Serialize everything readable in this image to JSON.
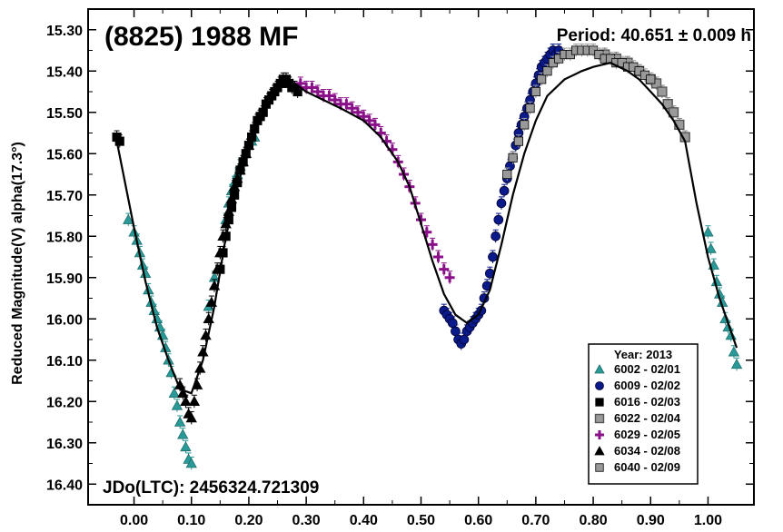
{
  "chart_data": {
    "type": "scatter",
    "title": "(8825) 1988 MF",
    "period_label": "Period: 40.651 ± 0.009 h",
    "epoch_label": "JDo(LTC): 2456324.721309",
    "ylabel": "Reduced Magnitude(V) alpha(17.3°)",
    "xlabel": "",
    "xlim": [
      -0.08,
      1.08
    ],
    "ylim": [
      16.45,
      15.25
    ],
    "y_inverted": true,
    "grid": false,
    "xticks": [
      "0.00",
      "0.10",
      "0.20",
      "0.30",
      "0.40",
      "0.50",
      "0.60",
      "0.70",
      "0.80",
      "0.90",
      "1.00"
    ],
    "yticks": [
      "15.30",
      "15.40",
      "15.50",
      "15.60",
      "15.70",
      "15.80",
      "15.90",
      "16.00",
      "16.10",
      "16.20",
      "16.30",
      "16.40"
    ],
    "legend": {
      "title": "Year: 2013",
      "placement": "bottom-right",
      "entries": [
        {
          "label": "6002 - 02/01",
          "marker": "triangle",
          "color": "#2a9a98"
        },
        {
          "label": "6009 - 02/02",
          "marker": "circle",
          "color": "#0a1a8a"
        },
        {
          "label": "6016 - 02/03",
          "marker": "square",
          "color": "#000000"
        },
        {
          "label": "6022 - 02/04",
          "marker": "square-gray",
          "color": "#808080"
        },
        {
          "label": "6029 - 02/05",
          "marker": "plus",
          "color": "#8a108a"
        },
        {
          "label": "6034 - 02/08",
          "marker": "triangle",
          "color": "#000000"
        },
        {
          "label": "6040 - 02/09",
          "marker": "square",
          "color": "#999999"
        }
      ]
    },
    "fit_curve": {
      "x": [
        -0.03,
        0.0,
        0.02,
        0.04,
        0.06,
        0.08,
        0.1,
        0.12,
        0.14,
        0.16,
        0.18,
        0.2,
        0.22,
        0.24,
        0.26,
        0.28,
        0.3,
        0.33,
        0.36,
        0.4,
        0.43,
        0.46,
        0.48,
        0.5,
        0.52,
        0.54,
        0.56,
        0.58,
        0.6,
        0.62,
        0.64,
        0.66,
        0.68,
        0.7,
        0.72,
        0.75,
        0.78,
        0.8,
        0.83,
        0.86,
        0.88,
        0.9,
        0.92,
        0.94,
        0.96,
        0.98,
        1.0,
        1.02,
        1.04,
        1.05
      ],
      "y": [
        15.57,
        15.78,
        15.91,
        16.02,
        16.1,
        16.17,
        16.18,
        16.1,
        15.97,
        15.8,
        15.68,
        15.58,
        15.5,
        15.45,
        15.42,
        15.43,
        15.45,
        15.47,
        15.49,
        15.52,
        15.56,
        15.62,
        15.68,
        15.77,
        15.86,
        15.94,
        15.99,
        16.01,
        15.99,
        15.93,
        15.82,
        15.7,
        15.6,
        15.52,
        15.46,
        15.42,
        15.4,
        15.39,
        15.38,
        15.4,
        15.42,
        15.45,
        15.48,
        15.52,
        15.57,
        15.72,
        15.85,
        15.95,
        16.03,
        16.07
      ]
    },
    "series": [
      {
        "name": "6002 - 02/01",
        "points": [
          [
            -0.01,
            15.76
          ],
          [
            0.0,
            15.79
          ],
          [
            0.005,
            15.81
          ],
          [
            0.01,
            15.84
          ],
          [
            0.015,
            15.87
          ],
          [
            0.02,
            15.89
          ],
          [
            0.025,
            15.93
          ],
          [
            0.03,
            15.96
          ],
          [
            0.035,
            15.98
          ],
          [
            0.04,
            16.0
          ],
          [
            0.045,
            16.02
          ],
          [
            0.05,
            16.04
          ],
          [
            0.055,
            16.07
          ],
          [
            0.06,
            16.1
          ],
          [
            0.065,
            16.13
          ],
          [
            0.07,
            16.18
          ],
          [
            0.075,
            16.21
          ],
          [
            0.08,
            16.25
          ],
          [
            0.085,
            16.28
          ],
          [
            0.09,
            16.31
          ],
          [
            0.095,
            16.34
          ],
          [
            0.1,
            16.35
          ],
          [
            0.13,
            15.97
          ],
          [
            0.14,
            15.9
          ],
          [
            0.15,
            15.84
          ],
          [
            0.16,
            15.76
          ],
          [
            0.165,
            15.72
          ],
          [
            0.17,
            15.69
          ],
          [
            0.175,
            15.67
          ],
          [
            0.18,
            15.65
          ],
          [
            0.185,
            15.63
          ],
          [
            0.19,
            15.62
          ],
          [
            0.195,
            15.6
          ],
          [
            0.2,
            15.58
          ],
          [
            0.205,
            15.57
          ],
          [
            0.21,
            15.56
          ],
          [
            1.0,
            15.79
          ],
          [
            1.005,
            15.83
          ],
          [
            1.01,
            15.87
          ],
          [
            1.015,
            15.91
          ],
          [
            1.02,
            15.94
          ],
          [
            1.025,
            15.96
          ],
          [
            1.03,
            16.0
          ],
          [
            1.035,
            16.02
          ],
          [
            1.04,
            16.04
          ],
          [
            1.045,
            16.08
          ],
          [
            1.05,
            16.11
          ]
        ]
      },
      {
        "name": "6009 - 02/02",
        "points": [
          [
            0.54,
            15.98
          ],
          [
            0.545,
            15.99
          ],
          [
            0.55,
            16.0
          ],
          [
            0.555,
            16.01
          ],
          [
            0.56,
            16.03
          ],
          [
            0.565,
            16.05
          ],
          [
            0.57,
            16.06
          ],
          [
            0.575,
            16.05
          ],
          [
            0.58,
            16.03
          ],
          [
            0.585,
            16.02
          ],
          [
            0.59,
            16.01
          ],
          [
            0.595,
            16.0
          ],
          [
            0.6,
            15.99
          ],
          [
            0.605,
            15.98
          ],
          [
            0.61,
            15.95
          ],
          [
            0.615,
            15.92
          ],
          [
            0.62,
            15.89
          ],
          [
            0.625,
            15.85
          ],
          [
            0.63,
            15.8
          ],
          [
            0.635,
            15.76
          ],
          [
            0.64,
            15.72
          ],
          [
            0.645,
            15.69
          ],
          [
            0.65,
            15.66
          ],
          [
            0.655,
            15.63
          ],
          [
            0.66,
            15.61
          ],
          [
            0.665,
            15.58
          ],
          [
            0.67,
            15.55
          ],
          [
            0.675,
            15.53
          ],
          [
            0.68,
            15.51
          ],
          [
            0.685,
            15.49
          ],
          [
            0.69,
            15.47
          ],
          [
            0.695,
            15.45
          ],
          [
            0.7,
            15.43
          ],
          [
            0.705,
            15.41
          ],
          [
            0.71,
            15.39
          ],
          [
            0.715,
            15.38
          ],
          [
            0.72,
            15.37
          ],
          [
            0.725,
            15.36
          ],
          [
            0.73,
            15.35
          ],
          [
            0.735,
            15.36
          ],
          [
            0.74,
            15.35
          ]
        ]
      },
      {
        "name": "6016 - 02/03",
        "points": [
          [
            -0.03,
            15.56
          ],
          [
            -0.025,
            15.57
          ],
          [
            0.15,
            15.88
          ],
          [
            0.155,
            15.84
          ],
          [
            0.16,
            15.8
          ],
          [
            0.165,
            15.76
          ],
          [
            0.17,
            15.73
          ],
          [
            0.175,
            15.7
          ],
          [
            0.18,
            15.67
          ],
          [
            0.185,
            15.64
          ],
          [
            0.19,
            15.62
          ],
          [
            0.195,
            15.6
          ],
          [
            0.2,
            15.58
          ],
          [
            0.205,
            15.56
          ],
          [
            0.21,
            15.54
          ],
          [
            0.215,
            15.52
          ],
          [
            0.22,
            15.51
          ],
          [
            0.225,
            15.5
          ],
          [
            0.23,
            15.48
          ],
          [
            0.235,
            15.47
          ],
          [
            0.24,
            15.46
          ],
          [
            0.245,
            15.45
          ],
          [
            0.25,
            15.44
          ],
          [
            0.255,
            15.43
          ],
          [
            0.26,
            15.42
          ],
          [
            0.265,
            15.42
          ],
          [
            0.27,
            15.43
          ],
          [
            0.275,
            15.44
          ],
          [
            0.28,
            15.44
          ],
          [
            0.285,
            15.45
          ]
        ]
      },
      {
        "name": "6022 - 02/04",
        "points": [
          [
            0.82,
            15.36
          ],
          [
            0.84,
            15.37
          ],
          [
            0.86,
            15.38
          ],
          [
            0.88,
            15.4
          ],
          [
            0.9,
            15.42
          ],
          [
            0.91,
            15.43
          ],
          [
            0.92,
            15.45
          ],
          [
            0.93,
            15.48
          ],
          [
            0.94,
            15.5
          ],
          [
            0.95,
            15.53
          ],
          [
            0.96,
            15.56
          ]
        ]
      },
      {
        "name": "6029 - 02/05",
        "points": [
          [
            0.29,
            15.43
          ],
          [
            0.3,
            15.44
          ],
          [
            0.31,
            15.44
          ],
          [
            0.32,
            15.45
          ],
          [
            0.33,
            15.46
          ],
          [
            0.34,
            15.46
          ],
          [
            0.35,
            15.47
          ],
          [
            0.36,
            15.48
          ],
          [
            0.37,
            15.48
          ],
          [
            0.38,
            15.49
          ],
          [
            0.39,
            15.5
          ],
          [
            0.4,
            15.51
          ],
          [
            0.41,
            15.52
          ],
          [
            0.42,
            15.53
          ],
          [
            0.43,
            15.55
          ],
          [
            0.44,
            15.57
          ],
          [
            0.45,
            15.59
          ],
          [
            0.46,
            15.62
          ],
          [
            0.47,
            15.65
          ],
          [
            0.48,
            15.68
          ],
          [
            0.49,
            15.72
          ],
          [
            0.5,
            15.76
          ],
          [
            0.51,
            15.79
          ],
          [
            0.52,
            15.82
          ],
          [
            0.53,
            15.85
          ],
          [
            0.54,
            15.88
          ],
          [
            0.55,
            15.9
          ]
        ]
      },
      {
        "name": "6034 - 02/08",
        "points": [
          [
            0.08,
            16.16
          ],
          [
            0.085,
            16.18
          ],
          [
            0.09,
            16.2
          ],
          [
            0.095,
            16.23
          ],
          [
            0.1,
            16.24
          ],
          [
            0.105,
            16.2
          ],
          [
            0.11,
            16.16
          ],
          [
            0.115,
            16.12
          ],
          [
            0.12,
            16.08
          ],
          [
            0.125,
            16.04
          ],
          [
            0.13,
            16.0
          ],
          [
            0.135,
            15.96
          ],
          [
            0.14,
            15.92
          ],
          [
            0.145,
            15.88
          ],
          [
            0.15,
            15.84
          ],
          [
            0.155,
            15.8
          ],
          [
            0.16,
            15.77
          ],
          [
            0.165,
            15.74
          ],
          [
            0.17,
            15.71
          ],
          [
            0.175,
            15.68
          ],
          [
            0.18,
            15.66
          ],
          [
            0.185,
            15.64
          ],
          [
            0.19,
            15.62
          ],
          [
            0.195,
            15.6
          ],
          [
            0.2,
            15.58
          ]
        ]
      },
      {
        "name": "6040 - 02/09",
        "points": [
          [
            0.65,
            15.65
          ],
          [
            0.66,
            15.61
          ],
          [
            0.67,
            15.57
          ],
          [
            0.68,
            15.53
          ],
          [
            0.69,
            15.49
          ],
          [
            0.7,
            15.45
          ],
          [
            0.71,
            15.42
          ],
          [
            0.72,
            15.4
          ],
          [
            0.73,
            15.38
          ],
          [
            0.74,
            15.37
          ],
          [
            0.75,
            15.36
          ],
          [
            0.76,
            15.36
          ],
          [
            0.77,
            15.35
          ],
          [
            0.78,
            15.35
          ],
          [
            0.79,
            15.35
          ],
          [
            0.8,
            15.35
          ],
          [
            0.81,
            15.36
          ],
          [
            0.82,
            15.37
          ],
          [
            0.83,
            15.37
          ],
          [
            0.84,
            15.38
          ],
          [
            0.85,
            15.38
          ],
          [
            0.86,
            15.39
          ],
          [
            0.87,
            15.39
          ],
          [
            0.88,
            15.4
          ],
          [
            0.89,
            15.41
          ],
          [
            0.9,
            15.42
          ]
        ]
      }
    ]
  }
}
